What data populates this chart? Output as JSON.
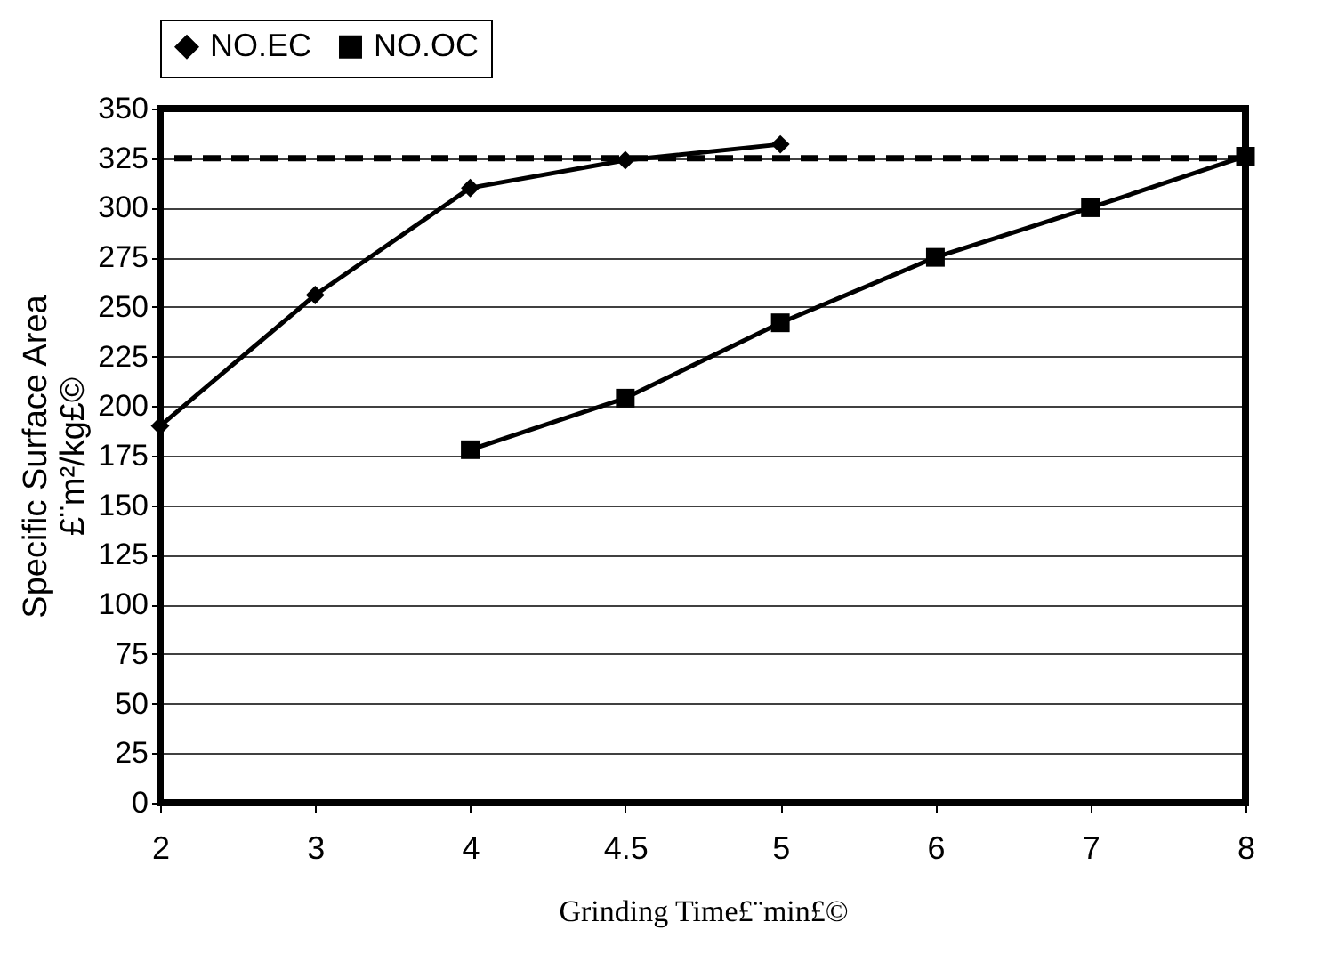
{
  "chart_data": {
    "type": "line",
    "xlabel": "Grinding Time£¨min£©",
    "ylabel": "Specific Surface Area\n£¨m²/kg£©",
    "categories": [
      "2",
      "3",
      "4",
      "4.5",
      "5",
      "6",
      "7",
      "8"
    ],
    "series": [
      {
        "name": "NO.EC",
        "color": "#000000",
        "marker": "diamond",
        "values": [
          190,
          256,
          310,
          324,
          332,
          null,
          null,
          null
        ]
      },
      {
        "name": "NO.OC",
        "color": "#000000",
        "marker": "square",
        "values": [
          null,
          null,
          178,
          204,
          242,
          275,
          300,
          326
        ]
      }
    ],
    "ylim": [
      0,
      350
    ],
    "yticks": [
      0,
      25,
      50,
      75,
      100,
      125,
      150,
      175,
      200,
      225,
      250,
      275,
      300,
      325,
      350
    ],
    "ref_lines": [
      {
        "axis": "y",
        "value": 325,
        "line_style": "dashed",
        "color": "#000000"
      }
    ],
    "grid": "y",
    "legend": "top",
    "line_style": "solid"
  }
}
